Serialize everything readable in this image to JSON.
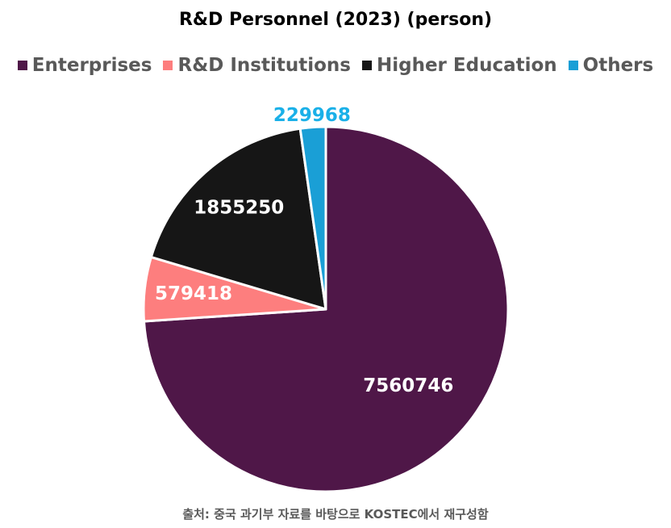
{
  "chart_data": {
    "type": "pie",
    "title": "R&D Personnel (2023) (person)",
    "legend_position": "top",
    "categories": [
      "Enterprises",
      "R&D Institutions",
      "Higher Education",
      "Others"
    ],
    "values": [
      7560746,
      579418,
      1855250,
      229968
    ],
    "colors": [
      "#4f1748",
      "#fd7e7e",
      "#161616",
      "#1a9fd6"
    ],
    "label_colors": [
      "#ffffff",
      "#ffffff",
      "#ffffff",
      "#1ab0e8"
    ]
  },
  "source_note": "출처: 중국 과기부 자료를 바탕으로 KOSTEC에서 재구성함"
}
